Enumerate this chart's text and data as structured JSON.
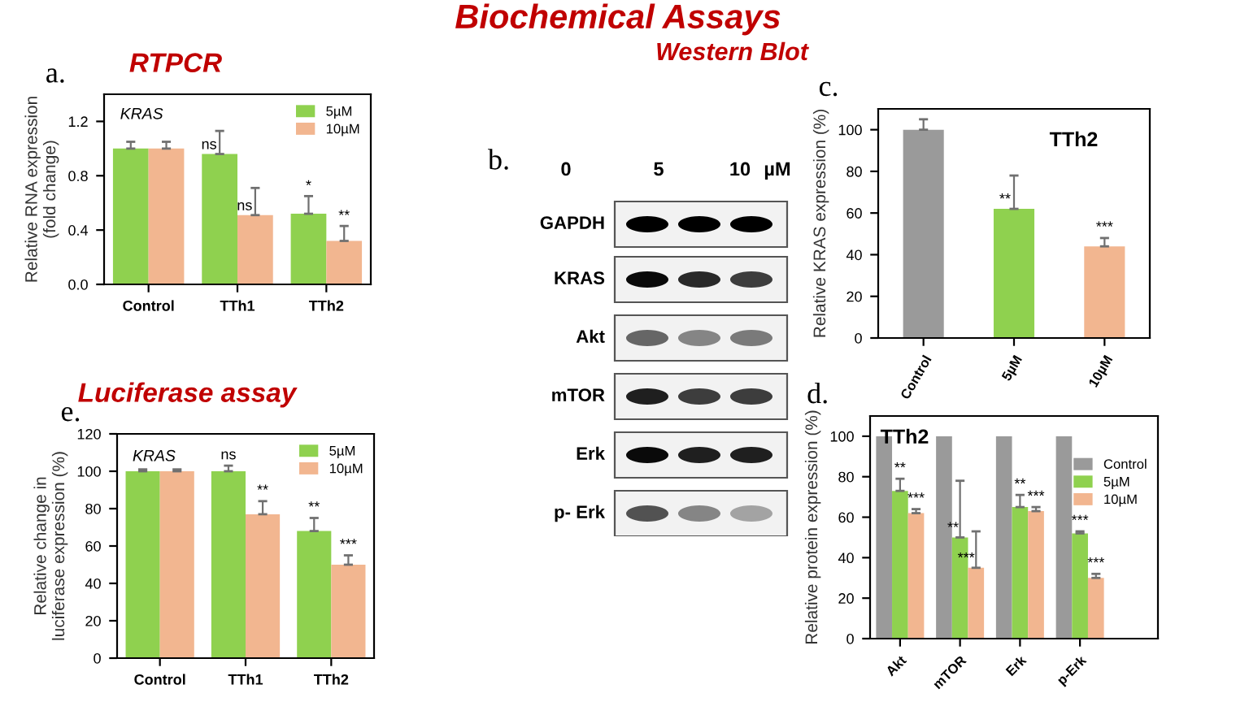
{
  "chart_data": [
    {
      "type": "other",
      "title": "Biochemical Assays"
    },
    {
      "type": "bar",
      "title": "RTPCR",
      "ylabel": "Relative RNA expression\n(fold change)",
      "annotations": [
        "a.",
        "KRAS"
      ],
      "categories": [
        "Control",
        "TTh1",
        "TTh2"
      ],
      "series": [
        {
          "name": "5µM",
          "color": "#8fd14f",
          "values": [
            1.0,
            0.96,
            0.52
          ],
          "errors": [
            [
              1.0,
              1.05
            ],
            [
              0.96,
              1.13
            ],
            [
              0.52,
              0.65
            ]
          ],
          "value_labels": [
            null,
            "ns",
            "*"
          ]
        },
        {
          "name": "10µM",
          "color": "#f2b690",
          "values": [
            1.0,
            0.51,
            0.32
          ],
          "errors": [
            [
              1.0,
              1.05
            ],
            [
              0.51,
              0.71
            ],
            [
              0.32,
              0.43
            ]
          ],
          "value_labels": [
            null,
            "ns",
            "**"
          ]
        }
      ],
      "ylim": [
        0,
        1.4
      ],
      "yticks": [
        {
          "value": 0,
          "label": "0.0"
        },
        0.4,
        0.8,
        1.2
      ],
      "legend": "top right",
      "grid": false
    },
    {
      "type": "bar",
      "title": "Luciferase assay",
      "ylabel": "Relative change in\nluciferase expression (%)",
      "annotations": [
        "e.",
        "KRAS"
      ],
      "categories": [
        "Control",
        "TTh1",
        "TTh2"
      ],
      "series": [
        {
          "name": "5µM",
          "color": "#8fd14f",
          "values": [
            100,
            100,
            68
          ],
          "errors": [
            [
              100,
              101
            ],
            [
              100,
              103
            ],
            [
              68,
              75
            ]
          ],
          "value_labels": [
            null,
            "ns",
            "**"
          ]
        },
        {
          "name": "10µM",
          "color": "#f2b690",
          "values": [
            100,
            77,
            50
          ],
          "errors": [
            [
              100,
              101
            ],
            [
              77,
              84
            ],
            [
              50,
              55
            ]
          ],
          "value_labels": [
            null,
            "**",
            "***"
          ]
        }
      ],
      "ylim": [
        0,
        120
      ],
      "yticks": [
        0,
        20,
        40,
        60,
        80,
        100,
        120
      ],
      "legend": "top right",
      "grid": false
    },
    {
      "type": "other",
      "title": "Western Blot",
      "annotations": [
        "b.",
        "0",
        "5",
        "10",
        "µM",
        "GAPDH",
        "KRAS",
        "Akt",
        "mTOR",
        "Erk",
        "p- Erk"
      ]
    },
    {
      "type": "bar",
      "title": "TTh2",
      "ylabel": "Relative KRAS expression (%)",
      "annotations": [
        "c."
      ],
      "categories": [
        "Control",
        "5µM",
        "10µM"
      ],
      "values": [
        100,
        62,
        44
      ],
      "colors": [
        "#9a9a9a",
        "#8fd14f",
        "#f2b690"
      ],
      "errors": [
        [
          100,
          105
        ],
        [
          62,
          78
        ],
        [
          44,
          48
        ]
      ],
      "value_labels": [
        null,
        "**",
        "***"
      ],
      "ylim": [
        0,
        110
      ],
      "yticks": [
        0,
        20,
        40,
        60,
        80,
        100
      ],
      "grid": false
    },
    {
      "type": "bar",
      "title": "TTh2",
      "ylabel": "Relative protein expression (%)",
      "annotations": [
        "d."
      ],
      "categories": [
        "Akt",
        "mTOR",
        "Erk",
        "p-Erk"
      ],
      "series": [
        {
          "name": "Control",
          "color": "#9a9a9a",
          "values": [
            100,
            100,
            100,
            100
          ],
          "value_labels": [
            null,
            null,
            null,
            null
          ]
        },
        {
          "name": "5µM",
          "color": "#8fd14f",
          "values": [
            73,
            50,
            65,
            52
          ],
          "errors": [
            [
              73,
              79
            ],
            [
              50,
              78
            ],
            [
              65,
              71
            ],
            [
              52,
              53
            ]
          ],
          "value_labels": [
            "**",
            "**",
            "**",
            "***"
          ]
        },
        {
          "name": "10µM",
          "color": "#f2b690",
          "values": [
            62,
            35,
            63,
            30
          ],
          "errors": [
            [
              62,
              64
            ],
            [
              35,
              53
            ],
            [
              63,
              65
            ],
            [
              30,
              32
            ]
          ],
          "value_labels": [
            "***",
            "***",
            "***",
            "***"
          ]
        }
      ],
      "ylim": [
        0,
        110
      ],
      "yticks": [
        0,
        20,
        40,
        60,
        80,
        100
      ],
      "legend": "top right",
      "grid": false
    }
  ]
}
